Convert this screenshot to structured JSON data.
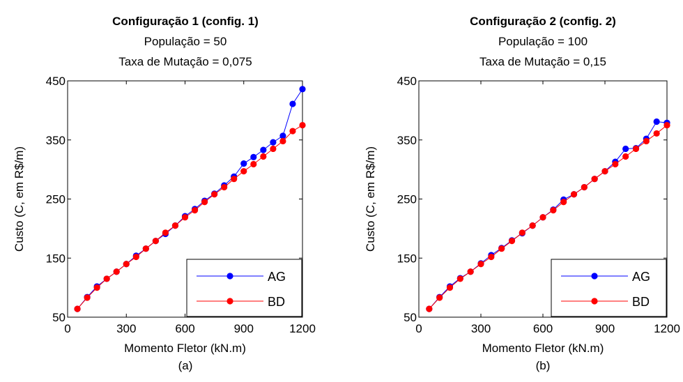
{
  "chart_data": [
    {
      "type": "line",
      "title": "Configuração 1 (config. 1)",
      "subtitle": [
        "População = 50",
        "Taxa de Mutação = 0,075"
      ],
      "xlabel": "Momento Fletor (kN.m)",
      "ylabel": "Custo (C, em R$/m)",
      "caption": "(a)",
      "xlim": [
        0,
        1200
      ],
      "ylim": [
        50,
        450
      ],
      "xticks": [
        0,
        300,
        600,
        900,
        1200
      ],
      "yticks": [
        50,
        150,
        250,
        350,
        450
      ],
      "grid": false,
      "legend_position": "bottom-right",
      "series": [
        {
          "name": "AG",
          "color": "#0000ff",
          "x": [
            50,
            100,
            150,
            200,
            250,
            300,
            350,
            400,
            450,
            500,
            550,
            600,
            650,
            700,
            750,
            800,
            850,
            900,
            950,
            1000,
            1050,
            1100,
            1150,
            1200
          ],
          "y": [
            64,
            84,
            102,
            115,
            127,
            140,
            154,
            166,
            179,
            191,
            205,
            221,
            233,
            247,
            259,
            273,
            288,
            310,
            321,
            333,
            346,
            357,
            411,
            436
          ]
        },
        {
          "name": "BD",
          "color": "#ff0000",
          "x": [
            50,
            100,
            150,
            200,
            250,
            300,
            350,
            400,
            450,
            500,
            550,
            600,
            650,
            700,
            750,
            800,
            850,
            900,
            950,
            1000,
            1050,
            1100,
            1150,
            1200
          ],
          "y": [
            64,
            83,
            100,
            115,
            127,
            140,
            152,
            166,
            179,
            193,
            205,
            219,
            231,
            245,
            258,
            270,
            284,
            297,
            309,
            322,
            335,
            348,
            365,
            375
          ]
        }
      ]
    },
    {
      "type": "line",
      "title": "Configuração 2 (config. 2)",
      "subtitle": [
        "População = 100",
        "Taxa de Mutação = 0,15"
      ],
      "xlabel": "Momento Fletor (kN.m)",
      "ylabel": "Custo (C, em R$/m)",
      "caption": "(b)",
      "xlim": [
        0,
        1200
      ],
      "ylim": [
        50,
        450
      ],
      "xticks": [
        0,
        300,
        600,
        900,
        1200
      ],
      "yticks": [
        50,
        150,
        250,
        350,
        450
      ],
      "grid": false,
      "legend_position": "bottom-right",
      "series": [
        {
          "name": "AG",
          "color": "#0000ff",
          "x": [
            50,
            100,
            150,
            200,
            250,
            300,
            350,
            400,
            450,
            500,
            550,
            600,
            650,
            700,
            750,
            800,
            850,
            900,
            950,
            1000,
            1050,
            1100,
            1150,
            1200
          ],
          "y": [
            64,
            84,
            102,
            116,
            127,
            141,
            155,
            167,
            180,
            192,
            205,
            219,
            232,
            249,
            258,
            270,
            284,
            297,
            313,
            335,
            336,
            352,
            381,
            379
          ]
        },
        {
          "name": "BD",
          "color": "#ff0000",
          "x": [
            50,
            100,
            150,
            200,
            250,
            300,
            350,
            400,
            450,
            500,
            550,
            600,
            650,
            700,
            750,
            800,
            850,
            900,
            950,
            1000,
            1050,
            1100,
            1150,
            1200
          ],
          "y": [
            64,
            83,
            100,
            115,
            127,
            140,
            152,
            166,
            179,
            193,
            205,
            219,
            231,
            245,
            258,
            270,
            284,
            297,
            309,
            322,
            335,
            348,
            361,
            375
          ]
        }
      ]
    }
  ]
}
